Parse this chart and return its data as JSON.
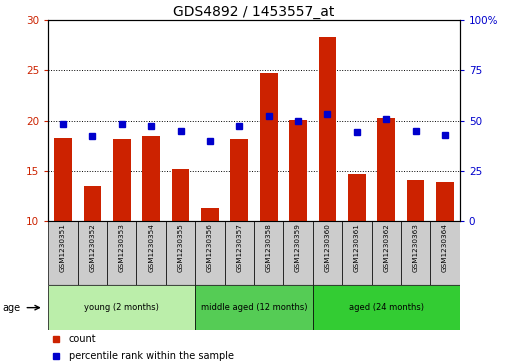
{
  "title": "GDS4892 / 1453557_at",
  "samples": [
    "GSM1230351",
    "GSM1230352",
    "GSM1230353",
    "GSM1230354",
    "GSM1230355",
    "GSM1230356",
    "GSM1230357",
    "GSM1230358",
    "GSM1230359",
    "GSM1230360",
    "GSM1230361",
    "GSM1230362",
    "GSM1230363",
    "GSM1230364"
  ],
  "counts": [
    18.3,
    13.5,
    18.2,
    18.5,
    15.2,
    11.3,
    18.2,
    24.7,
    20.1,
    28.3,
    14.7,
    20.3,
    14.1,
    13.9
  ],
  "percentiles": [
    48.5,
    42.5,
    48.5,
    47.5,
    45.0,
    40.0,
    47.5,
    52.5,
    50.0,
    53.5,
    44.5,
    51.0,
    45.0,
    43.0
  ],
  "ylim_left": [
    10,
    30
  ],
  "ylim_right": [
    0,
    100
  ],
  "yticks_left": [
    10,
    15,
    20,
    25,
    30
  ],
  "yticks_right": [
    0,
    25,
    50,
    75,
    100
  ],
  "ytick_right_labels": [
    "0",
    "25",
    "50",
    "75",
    "100%"
  ],
  "bar_color": "#cc2200",
  "dot_color": "#0000cc",
  "bar_bottom": 10,
  "groups": [
    {
      "label": "young (2 months)",
      "start": 0,
      "end": 5,
      "color": "#bbeeaa"
    },
    {
      "label": "middle aged (12 months)",
      "start": 5,
      "end": 9,
      "color": "#55cc55"
    },
    {
      "label": "aged (24 months)",
      "start": 9,
      "end": 14,
      "color": "#33cc33"
    }
  ],
  "age_label": "age",
  "legend_count_label": "count",
  "legend_percentile_label": "percentile rank within the sample",
  "bg_color": "#ffffff",
  "tick_label_bg": "#cccccc",
  "grid_color": "#000000",
  "title_fontsize": 10,
  "tick_fontsize": 7.5
}
